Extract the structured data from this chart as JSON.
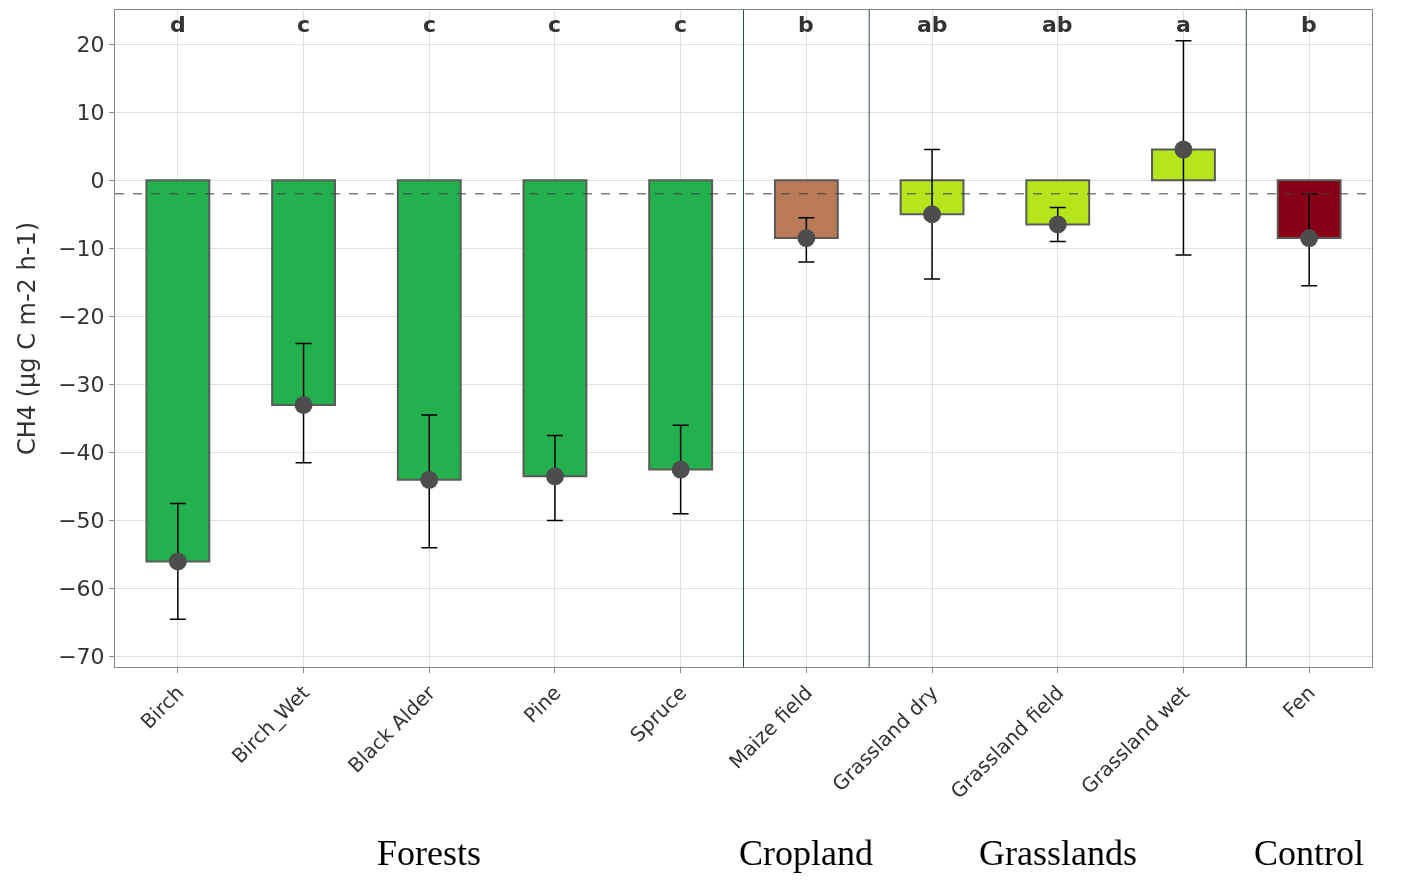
{
  "chart_data": {
    "type": "bar",
    "ylabel": "CH4 (µg C m-2 h-1)",
    "categories": [
      "Birch",
      "Birch_Wet",
      "Black Alder",
      "Pine",
      "Spruce",
      "Maize field",
      "Grassland dry",
      "Grassland field",
      "Grassland wet",
      "Fen"
    ],
    "series": [
      {
        "colors": [
          "#22b14c",
          "#22b14c",
          "#22b14c",
          "#22b14c",
          "#22b14c",
          "#b97a57",
          "#b5e61d",
          "#b5e61d",
          "#b5e61d",
          "#880015"
        ],
        "values": [
          -56,
          -33,
          -44,
          -43.5,
          -42.5,
          -8.5,
          -5,
          -6.5,
          4.5,
          -8.5
        ]
      },
      {
        "type": "scatter",
        "color": "#4d4d4d",
        "marker": "circle",
        "values": [
          -56,
          -33,
          -44,
          -43.5,
          -42.5,
          -8.5,
          -5,
          -6.5,
          4.5,
          -8.5
        ],
        "errors": [
          [
            -64.5,
            -47.5
          ],
          [
            -41.5,
            -24
          ],
          [
            -54,
            -34.5
          ],
          [
            -50,
            -37.5
          ],
          [
            -49,
            -36
          ],
          [
            -12,
            -5.5
          ],
          [
            -14.5,
            4.5
          ],
          [
            -9,
            -4
          ],
          [
            -11,
            20.5
          ],
          [
            -15.5,
            -2
          ]
        ]
      }
    ],
    "ylim": [
      -71.5,
      25
    ],
    "yticks": [
      -70,
      -60,
      -50,
      -40,
      -30,
      -20,
      -10,
      0,
      10,
      20
    ],
    "grid": true,
    "ref_lines": [
      {
        "axis": "y",
        "value": -2,
        "line_style": "dashed",
        "color": "#404040"
      }
    ],
    "annotations": [
      "d",
      "c",
      "c",
      "c",
      "c",
      "b",
      "ab",
      "ab",
      "a",
      "b",
      "Forests",
      "Cropland",
      "Grasslands",
      "Control"
    ]
  }
}
